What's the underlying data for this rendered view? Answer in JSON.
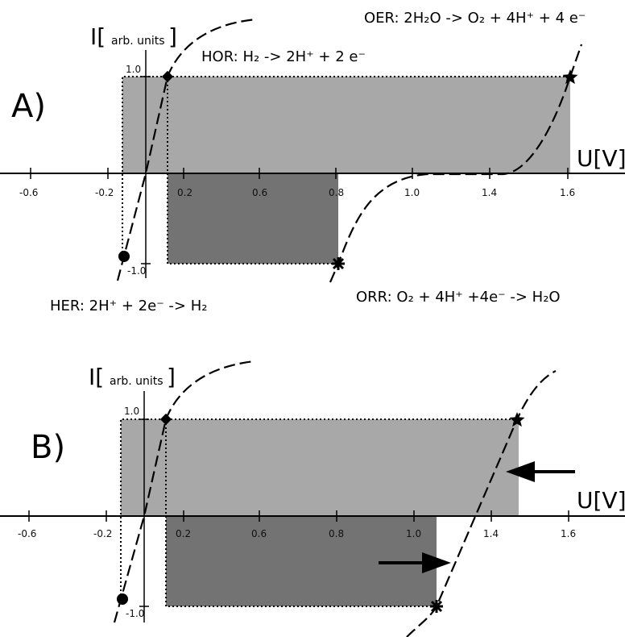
{
  "panels": [
    {
      "label": "A)",
      "y_axis_title": "I[",
      "y_axis_unit": "arb. units",
      "y_axis_close": "]",
      "x_axis_title": "U[V]",
      "x_ticks": [
        "-0.6",
        "-0.2",
        "0.2",
        "0.6",
        "0.8",
        "1.0",
        "1.4",
        "1.6"
      ],
      "y_tick_top": "1.0",
      "y_tick_bottom": "-1.0",
      "equations": {
        "oer": "OER: 2H₂O -> O₂ + 4H⁺ + 4 e⁻",
        "hor": "HOR: H₂ -> 2H⁺ + 2 e⁻",
        "her": "HER: 2H⁺ + 2e⁻ -> H₂",
        "orr": "ORR: O₂ + 4H⁺ +4e⁻ -> H₂O"
      }
    },
    {
      "label": "B)",
      "y_axis_title": "I[",
      "y_axis_unit": "arb. units",
      "y_axis_close": "]",
      "x_axis_title": "U[V]",
      "x_ticks": [
        "-0.6",
        "-0.2",
        "0.2",
        "0.6",
        "0.8",
        "1.0",
        "1.4",
        "1.6"
      ],
      "y_tick_top": "1.0",
      "y_tick_bottom": "-1.0"
    }
  ],
  "colors": {
    "light_region": "#a8a8a8",
    "dark_region": "#737373",
    "line": "#000000"
  }
}
